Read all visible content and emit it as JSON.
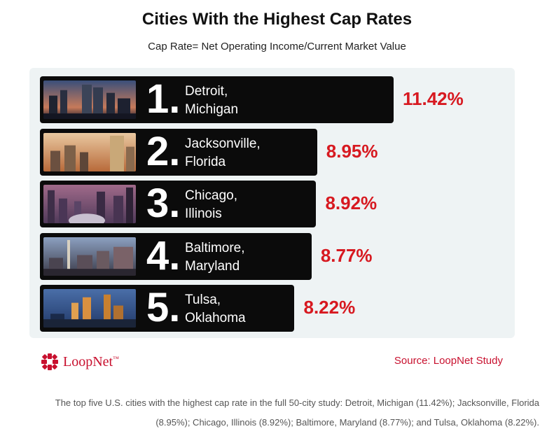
{
  "header": {
    "title": "Cities With the Highest Cap Rates",
    "subtitle": "Cap Rate= Net Operating Income/Current Market Value"
  },
  "chart_data": {
    "type": "bar",
    "orientation": "horizontal",
    "title": "Cities With the Highest Cap Rates",
    "subtitle": "Cap Rate= Net Operating Income/Current Market Value",
    "unit": "%",
    "categories": [
      {
        "rank": "1.",
        "city": "Detroit,",
        "state": "Michigan"
      },
      {
        "rank": "2.",
        "city": "Jacksonville,",
        "state": "Florida"
      },
      {
        "rank": "3.",
        "city": "Chicago,",
        "state": "Illinois"
      },
      {
        "rank": "4.",
        "city": "Baltimore,",
        "state": "Maryland"
      },
      {
        "rank": "5.",
        "city": "Tulsa,",
        "state": "Oklahoma"
      }
    ],
    "values": [
      11.42,
      8.95,
      8.92,
      8.77,
      8.22
    ],
    "value_labels": [
      "11.42%",
      "8.95%",
      "8.92%",
      "8.77%",
      "8.22%"
    ],
    "grid": false,
    "legend": "none"
  },
  "colors": {
    "bar": "#0b0b0b",
    "value_text": "#d71920",
    "panel": "#eef3f4",
    "brand": "#c8102e"
  },
  "footer": {
    "logo_text": "LoopNet",
    "logo_tm": "™",
    "source": "Source: LoopNet Study",
    "caption_line1": "The top five U.S. cities with the highest cap rate in the full 50-city study: Detroit, Michigan (11.42%); Jacksonville, Florida",
    "caption_line2": "(8.95%); Chicago, Illinois (8.92%); Baltimore, Maryland (8.77%); and Tulsa, Oklahoma (8.22%)."
  }
}
